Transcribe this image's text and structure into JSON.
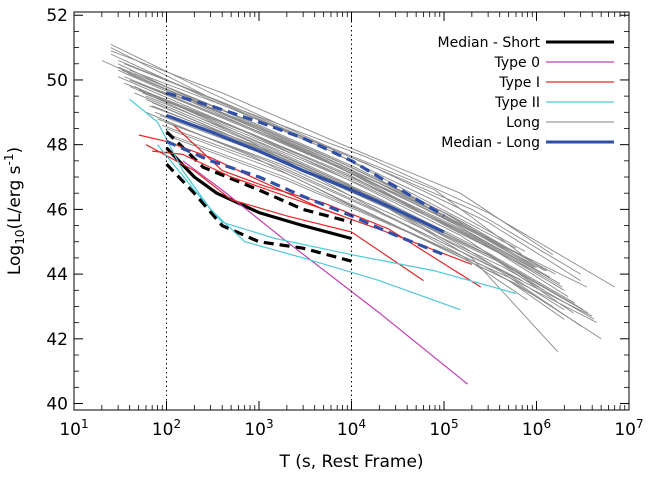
{
  "chart_data": {
    "type": "line",
    "title": "",
    "xlabel": "T (s, Rest Frame)",
    "ylabel": "Log10(L/erg s^-1)",
    "xscale": "log",
    "xlim": [
      10,
      10000000
    ],
    "ylim": [
      39.8,
      52.1
    ],
    "x_ticks": [
      {
        "value": 10,
        "base": "10",
        "exp": "1"
      },
      {
        "value": 100,
        "base": "10",
        "exp": "2"
      },
      {
        "value": 1000,
        "base": "10",
        "exp": "3"
      },
      {
        "value": 10000,
        "base": "10",
        "exp": "4"
      },
      {
        "value": 100000,
        "base": "10",
        "exp": "5"
      },
      {
        "value": 1000000,
        "base": "10",
        "exp": "6"
      },
      {
        "value": 10000000,
        "base": "10",
        "exp": "7"
      }
    ],
    "y_ticks": [
      {
        "value": 40,
        "label": "40"
      },
      {
        "value": 42,
        "label": "42"
      },
      {
        "value": 44,
        "label": "44"
      },
      {
        "value": 46,
        "label": "46"
      },
      {
        "value": 48,
        "label": "48"
      },
      {
        "value": 50,
        "label": "50"
      },
      {
        "value": 52,
        "label": "52"
      }
    ],
    "vertical_reference_lines": [
      100,
      10000
    ],
    "grid": false,
    "legend_position": "top-right",
    "legend": [
      {
        "label": "Median - Short",
        "color": "#000000",
        "width": 3
      },
      {
        "label": "Type 0",
        "color": "#c040b0",
        "width": 1.2
      },
      {
        "label": "Type I",
        "color": "#e02828",
        "width": 1.2
      },
      {
        "label": "Type II",
        "color": "#50c8d8",
        "width": 1.2
      },
      {
        "label": "Long",
        "color": "#808080",
        "width": 1
      },
      {
        "label": "Median - Long",
        "color": "#3050a8",
        "width": 3
      }
    ],
    "series": [
      {
        "name": "Median - Short",
        "color": "#000000",
        "width": 3.2,
        "dash": "",
        "x": [
          100,
          200,
          350,
          1000,
          3000,
          10000
        ],
        "y": [
          47.9,
          47.0,
          46.5,
          45.9,
          45.5,
          45.1
        ]
      },
      {
        "name": "Median - Short",
        "color": "#000000",
        "width": 3.2,
        "dash": "10,6",
        "x": [
          100,
          200,
          400,
          1000,
          3000,
          10000
        ],
        "y": [
          47.4,
          46.5,
          45.5,
          45.0,
          44.8,
          44.4
        ]
      },
      {
        "name": "Median - Short",
        "color": "#000000",
        "width": 3.2,
        "dash": "10,6",
        "x": [
          100,
          250,
          1000,
          3000,
          10000
        ],
        "y": [
          48.4,
          47.3,
          46.6,
          46.0,
          45.6
        ]
      },
      {
        "name": "Type 0",
        "color": "#c040b0",
        "width": 1.2,
        "dash": "",
        "x": [
          150,
          400,
          2000,
          20000,
          180000
        ],
        "y": [
          47.5,
          46.6,
          45.0,
          42.8,
          40.6
        ]
      },
      {
        "name": "Type I",
        "color": "#e02828",
        "width": 1.2,
        "dash": "",
        "x": [
          50,
          100,
          300,
          1000,
          5000,
          30000,
          200000
        ],
        "y": [
          48.3,
          48.1,
          47.6,
          46.9,
          46.0,
          45.2,
          44.3
        ]
      },
      {
        "name": "Type I",
        "color": "#e02828",
        "width": 1.2,
        "dash": "",
        "x": [
          60,
          200,
          500,
          2000,
          10000,
          60000
        ],
        "y": [
          48.0,
          47.2,
          46.3,
          45.8,
          45.3,
          43.8
        ]
      },
      {
        "name": "Type I",
        "color": "#e02828",
        "width": 1.2,
        "dash": "",
        "x": [
          120,
          400,
          1200,
          5000,
          25000,
          250000
        ],
        "y": [
          48.6,
          47.2,
          46.7,
          46.2,
          45.4,
          43.6
        ]
      },
      {
        "name": "Type I",
        "color": "#e02828",
        "width": 1.2,
        "dash": "",
        "x": [
          70,
          150,
          500,
          2000,
          8000
        ],
        "y": [
          47.8,
          47.7,
          47.0,
          46.4,
          45.8
        ]
      },
      {
        "name": "Type II",
        "color": "#50c8d8",
        "width": 1.2,
        "dash": "",
        "x": [
          40,
          80,
          150,
          300,
          700,
          3000,
          20000,
          150000
        ],
        "y": [
          49.4,
          48.7,
          47.2,
          46.0,
          45.0,
          44.5,
          43.8,
          42.9
        ]
      },
      {
        "name": "Type II",
        "color": "#50c8d8",
        "width": 1.2,
        "dash": "",
        "x": [
          80,
          200,
          400,
          1500,
          10000,
          80000,
          600000
        ],
        "y": [
          48.0,
          46.6,
          45.6,
          45.1,
          44.6,
          44.1,
          43.4
        ]
      },
      {
        "name": "Median - Long",
        "color": "#3050a8",
        "width": 3.2,
        "dash": "",
        "x": [
          100,
          300,
          1000,
          3000,
          10000,
          30000,
          100000
        ],
        "y": [
          48.9,
          48.4,
          47.8,
          47.2,
          46.6,
          46.0,
          45.3
        ]
      },
      {
        "name": "Median - Long",
        "color": "#3050a8",
        "width": 3.2,
        "dash": "10,6",
        "x": [
          100,
          300,
          1000,
          3000,
          10000,
          30000,
          100000
        ],
        "y": [
          49.6,
          49.2,
          48.7,
          48.2,
          47.5,
          46.7,
          45.8
        ]
      },
      {
        "name": "Median - Long",
        "color": "#3050a8",
        "width": 3.2,
        "dash": "10,6",
        "x": [
          100,
          300,
          1000,
          3000,
          10000,
          30000,
          100000
        ],
        "y": [
          48.1,
          47.5,
          47.0,
          46.4,
          45.8,
          45.2,
          44.6
        ]
      }
    ],
    "long_grb_curves": [
      {
        "x": [
          25,
          300,
          5000,
          80000,
          700000
        ],
        "y": [
          51.1,
          49.6,
          48.0,
          46.6,
          44.6
        ]
      },
      {
        "x": [
          25,
          400,
          8000,
          150000,
          1500000
        ],
        "y": [
          50.9,
          49.6,
          48.0,
          46.5,
          44.6
        ]
      },
      {
        "x": [
          30,
          500,
          10000,
          200000,
          3000000
        ],
        "y": [
          50.6,
          49.2,
          47.6,
          46.0,
          44.0
        ]
      },
      {
        "x": [
          35,
          600,
          15000,
          300000,
          7000000
        ],
        "y": [
          50.5,
          49.1,
          47.6,
          45.9,
          43.6
        ]
      },
      {
        "x": [
          20,
          300,
          5000,
          100000,
          1000000
        ],
        "y": [
          50.6,
          49.1,
          47.6,
          45.9,
          44.2
        ]
      },
      {
        "x": [
          40,
          800,
          15000,
          300000,
          3000000
        ],
        "y": [
          50.3,
          48.9,
          47.4,
          45.6,
          43.8
        ]
      },
      {
        "x": [
          30,
          500,
          8000,
          150000,
          1200000
        ],
        "y": [
          50.1,
          48.6,
          47.0,
          45.2,
          43.5
        ]
      },
      {
        "x": [
          40,
          700,
          10000,
          150000,
          2000000
        ],
        "y": [
          49.8,
          48.2,
          46.7,
          44.9,
          42.9
        ]
      },
      {
        "x": [
          50,
          1000,
          20000,
          300000,
          3500000
        ],
        "y": [
          49.9,
          48.4,
          46.8,
          45.1,
          43.6
        ]
      },
      {
        "x": [
          60,
          1000,
          15000,
          200000,
          1700000
        ],
        "y": [
          49.4,
          47.9,
          46.4,
          44.5,
          41.6
        ]
      },
      {
        "x": [
          45,
          800,
          10000,
          150000,
          800000
        ],
        "y": [
          49.6,
          48.1,
          46.4,
          44.6,
          43.2
        ]
      },
      {
        "x": [
          70,
          1200,
          20000,
          300000,
          2500000
        ],
        "y": [
          49.3,
          47.8,
          46.3,
          44.6,
          42.8
        ]
      },
      {
        "x": [
          60,
          900,
          12000,
          250000,
          1500000
        ],
        "y": [
          49.0,
          47.6,
          46.0,
          44.3,
          43.0
        ]
      },
      {
        "x": [
          80,
          1500,
          25000,
          400000,
          3000000
        ],
        "y": [
          48.8,
          47.4,
          45.8,
          44.1,
          42.4
        ]
      },
      {
        "x": [
          100,
          2000,
          30000,
          500000,
          2000000
        ],
        "y": [
          48.5,
          47.1,
          45.5,
          43.8,
          42.6
        ]
      },
      {
        "x": [
          120,
          2000,
          40000,
          600000,
          5000000
        ],
        "y": [
          48.2,
          46.9,
          45.3,
          43.7,
          42.0
        ]
      },
      {
        "x": [
          40,
          600,
          10000,
          120000,
          1000000
        ],
        "y": [
          50.0,
          48.8,
          47.3,
          45.8,
          44.3
        ]
      },
      {
        "x": [
          30,
          400,
          6000,
          90000,
          900000
        ],
        "y": [
          50.3,
          48.9,
          47.4,
          45.8,
          44.4
        ]
      },
      {
        "x": [
          50,
          700,
          12000,
          180000,
          1800000
        ],
        "y": [
          49.7,
          48.4,
          46.9,
          45.3,
          43.7
        ]
      },
      {
        "x": [
          35,
          500,
          9000,
          120000,
          1100000
        ],
        "y": [
          49.9,
          48.6,
          47.1,
          45.4,
          44.0
        ]
      },
      {
        "x": [
          60,
          800,
          14000,
          250000,
          2200000
        ],
        "y": [
          49.5,
          48.2,
          46.7,
          45.0,
          43.3
        ]
      },
      {
        "x": [
          45,
          700,
          11000,
          160000,
          1300000
        ],
        "y": [
          50.2,
          48.8,
          47.3,
          45.6,
          44.1
        ]
      },
      {
        "x": [
          25,
          350,
          6000,
          70000,
          600000
        ],
        "y": [
          50.8,
          49.3,
          47.8,
          46.2,
          44.8
        ]
      },
      {
        "x": [
          30,
          450,
          7000,
          100000,
          1000000
        ],
        "y": [
          50.4,
          49.0,
          47.5,
          45.9,
          44.2
        ]
      },
      {
        "x": [
          35,
          550,
          9500,
          140000,
          1400000
        ],
        "y": [
          50.1,
          48.7,
          47.2,
          45.5,
          43.9
        ]
      },
      {
        "x": [
          55,
          900,
          14000,
          220000,
          2000000
        ],
        "y": [
          49.6,
          48.3,
          46.8,
          45.1,
          43.5
        ]
      },
      {
        "x": [
          65,
          1100,
          18000,
          280000,
          2600000
        ],
        "y": [
          49.2,
          47.9,
          46.4,
          44.7,
          43.1
        ]
      },
      {
        "x": [
          75,
          1300,
          22000,
          350000,
          3200000
        ],
        "y": [
          49.0,
          47.7,
          46.1,
          44.5,
          42.9
        ]
      },
      {
        "x": [
          90,
          1600,
          28000,
          420000,
          4000000
        ],
        "y": [
          48.6,
          47.3,
          45.7,
          44.1,
          42.7
        ]
      },
      {
        "x": [
          110,
          1900,
          35000,
          500000,
          4500000
        ],
        "y": [
          48.3,
          47.0,
          45.4,
          43.9,
          42.5
        ]
      },
      {
        "x": [
          45,
          650,
          9000,
          110000,
          700000
        ],
        "y": [
          49.8,
          48.3,
          46.8,
          45.0,
          43.8
        ]
      },
      {
        "x": [
          30,
          380,
          5500,
          60000,
          500000
        ],
        "y": [
          50.5,
          49.0,
          47.5,
          45.9,
          44.5
        ]
      },
      {
        "x": [
          25,
          320,
          5000,
          75000,
          750000
        ],
        "y": [
          51.0,
          49.4,
          47.9,
          46.3,
          44.7
        ]
      },
      {
        "x": [
          40,
          620,
          10500,
          170000,
          1600000
        ],
        "y": [
          50.0,
          48.6,
          47.1,
          45.5,
          44.0
        ]
      },
      {
        "x": [
          50,
          750,
          13000,
          200000,
          1900000
        ],
        "y": [
          49.7,
          48.3,
          46.8,
          45.2,
          43.6
        ]
      },
      {
        "x": [
          70,
          1150,
          19000,
          300000,
          2800000
        ],
        "y": [
          49.2,
          47.8,
          46.3,
          44.6,
          43.0
        ]
      },
      {
        "x": [
          85,
          1450,
          26000,
          380000,
          3600000
        ],
        "y": [
          48.9,
          47.6,
          46.0,
          44.4,
          42.8
        ]
      },
      {
        "x": [
          95,
          1700,
          30000,
          450000,
          4200000
        ],
        "y": [
          48.7,
          47.4,
          45.8,
          44.2,
          42.6
        ]
      },
      {
        "x": [
          38,
          560,
          8500,
          130000,
          1250000
        ],
        "y": [
          50.2,
          48.8,
          47.2,
          45.6,
          44.1
        ]
      },
      {
        "x": [
          33,
          480,
          7500,
          105000,
          950000
        ],
        "y": [
          50.3,
          48.9,
          47.4,
          45.8,
          44.2
        ]
      }
    ]
  }
}
